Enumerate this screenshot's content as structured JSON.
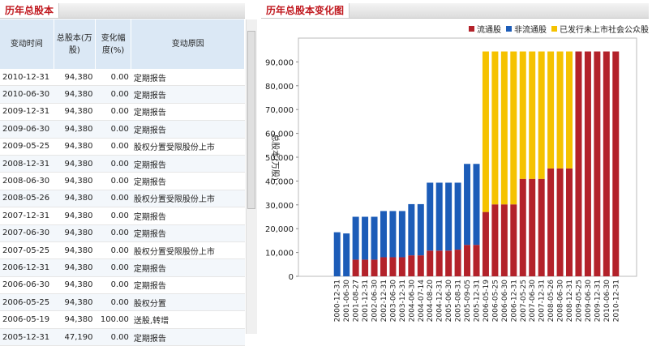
{
  "table": {
    "title": "历年总股本",
    "columns": [
      "变动时间",
      "总股本(万股)",
      "变化幅度(%)",
      "变动原因"
    ],
    "rows": [
      [
        "2010-12-31",
        "94,380",
        "0.00",
        "定期报告"
      ],
      [
        "2010-06-30",
        "94,380",
        "0.00",
        "定期报告"
      ],
      [
        "2009-12-31",
        "94,380",
        "0.00",
        "定期报告"
      ],
      [
        "2009-06-30",
        "94,380",
        "0.00",
        "定期报告"
      ],
      [
        "2009-05-25",
        "94,380",
        "0.00",
        "股权分置受限股份上市"
      ],
      [
        "2008-12-31",
        "94,380",
        "0.00",
        "定期报告"
      ],
      [
        "2008-06-30",
        "94,380",
        "0.00",
        "定期报告"
      ],
      [
        "2008-05-26",
        "94,380",
        "0.00",
        "股权分置受限股份上市"
      ],
      [
        "2007-12-31",
        "94,380",
        "0.00",
        "定期报告"
      ],
      [
        "2007-06-30",
        "94,380",
        "0.00",
        "定期报告"
      ],
      [
        "2007-05-25",
        "94,380",
        "0.00",
        "股权分置受限股份上市"
      ],
      [
        "2006-12-31",
        "94,380",
        "0.00",
        "定期报告"
      ],
      [
        "2006-06-30",
        "94,380",
        "0.00",
        "定期报告"
      ],
      [
        "2006-05-25",
        "94,380",
        "0.00",
        "股权分置"
      ],
      [
        "2006-05-19",
        "94,380",
        "100.00",
        "送股,转增"
      ],
      [
        "2005-12-31",
        "47,190",
        "0.00",
        "定期报告"
      ]
    ]
  },
  "chart_data": {
    "type": "stacked_bar",
    "title": "历年总股本变化图",
    "y_label": "总股本(万股)",
    "categories": [
      "2000-12-31",
      "2001-06-30",
      "2001-08-27",
      "2001-12-31",
      "2002-06-30",
      "2002-12-31",
      "2003-06-30",
      "2003-12-31",
      "2004-06-30",
      "2004-07-14",
      "2004-08-20",
      "2004-12-31",
      "2005-06-30",
      "2005-08-31",
      "2005-09-05",
      "2005-12-31",
      "2006-05-19",
      "2006-05-25",
      "2006-06-30",
      "2006-12-31",
      "2007-05-25",
      "2007-06-30",
      "2007-12-31",
      "2008-05-26",
      "2008-06-30",
      "2008-12-31",
      "2009-05-25",
      "2009-06-30",
      "2009-12-31",
      "2010-06-30",
      "2010-12-31"
    ],
    "series": [
      {
        "name": "流通股",
        "color": "#b3222a",
        "values": [
          0,
          0,
          7000,
          7000,
          7000,
          8000,
          8000,
          8000,
          8800,
          8800,
          10800,
          10800,
          10800,
          11200,
          13200,
          13200,
          27000,
          30200,
          30200,
          30200,
          40900,
          40900,
          40900,
          45300,
          45300,
          45300,
          94380,
          94380,
          94380,
          94380,
          94380
        ]
      },
      {
        "name": "非流通股",
        "color": "#1c5cb8",
        "values": [
          18500,
          18000,
          18000,
          18000,
          18000,
          19400,
          19400,
          19400,
          21500,
          21500,
          28500,
          28500,
          28500,
          28100,
          33990,
          33990,
          0,
          0,
          0,
          0,
          0,
          0,
          0,
          0,
          0,
          0,
          0,
          0,
          0,
          0,
          0
        ]
      },
      {
        "name": "已发行未上市社会公众股",
        "color": "#f5c200",
        "values": [
          0,
          0,
          0,
          0,
          0,
          0,
          0,
          0,
          0,
          0,
          0,
          0,
          0,
          0,
          0,
          0,
          67380,
          64180,
          64180,
          64180,
          53480,
          53480,
          53480,
          49080,
          49080,
          49080,
          0,
          0,
          0,
          0,
          0
        ]
      }
    ],
    "ylim": [
      0,
      100000
    ],
    "yticks": [
      0,
      {
        "value": 10000,
        "label": "10,000"
      },
      {
        "value": 20000,
        "label": "20,000"
      },
      {
        "value": 30000,
        "label": "30,000"
      },
      {
        "value": 40000,
        "label": "40,000"
      },
      {
        "value": 50000,
        "label": "50,000"
      },
      {
        "value": 60000,
        "label": "60,000"
      },
      {
        "value": 70000,
        "label": "70,000"
      },
      {
        "value": 80000,
        "label": "80,000"
      },
      {
        "value": 90000,
        "label": "90,000"
      }
    ],
    "grid": false,
    "legend": "top-right"
  }
}
